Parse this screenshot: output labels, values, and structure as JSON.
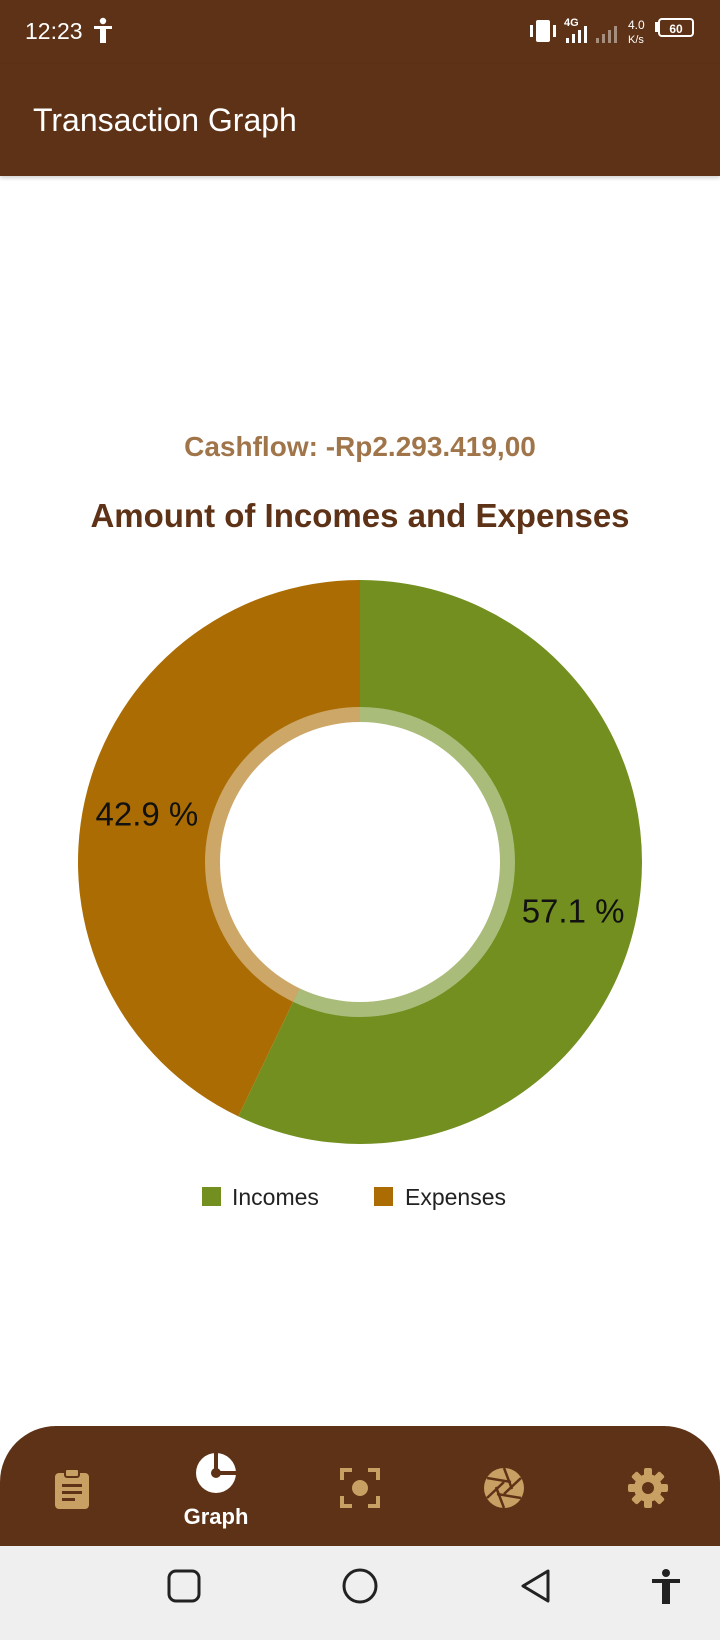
{
  "status_bar": {
    "time": "12:23",
    "network": "4G",
    "speed_value": "4.0",
    "speed_unit": "K/s",
    "battery": "60"
  },
  "app_bar": {
    "title": "Transaction Graph"
  },
  "cashflow": "Cashflow: -Rp2.293.419,00",
  "chart_data": {
    "type": "pie",
    "title": "Amount of Incomes and Expenses",
    "series": [
      {
        "name": "Incomes",
        "value": 57.1,
        "label": "57.1 %",
        "color": "#728f1f"
      },
      {
        "name": "Expenses",
        "value": 42.9,
        "label": "42.9 %",
        "color": "#ab6d03"
      }
    ],
    "legend": "bottom-center",
    "donut": true
  },
  "bottom_nav": {
    "items": [
      {
        "icon": "clipboard-icon",
        "label": "",
        "active": false
      },
      {
        "icon": "pie-chart-icon",
        "label": "Graph",
        "active": true
      },
      {
        "icon": "scan-icon",
        "label": "",
        "active": false
      },
      {
        "icon": "aperture-icon",
        "label": "",
        "active": false
      },
      {
        "icon": "gear-icon",
        "label": "",
        "active": false
      }
    ]
  },
  "colors": {
    "primary_dark": "#5e3216",
    "accent": "#c9a063",
    "cashflow_text": "#a0754a",
    "incomes": "#728f1f",
    "expenses": "#ab6d03"
  }
}
